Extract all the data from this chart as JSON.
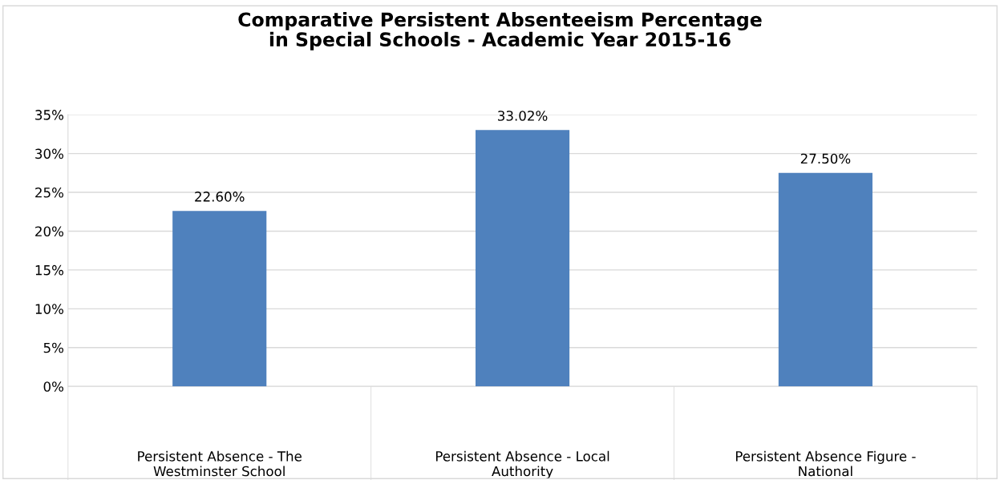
{
  "chart_data": {
    "type": "bar",
    "title": "Comparative Persistent Absenteeism Percentage\nin Special Schools - Academic Year 2015-16",
    "categories": [
      "Persistent Absence - The\nWestminster School",
      "Persistent Absence - Local\nAuthority",
      "Persistent Absence Figure -\nNational"
    ],
    "values": [
      22.6,
      33.02,
      27.5
    ],
    "value_labels": [
      "22.60%",
      "33.02%",
      "27.50%"
    ],
    "color": "#4f81bd",
    "ylim": [
      0,
      35
    ],
    "yticks": [
      {
        "value": 0,
        "label": "0%"
      },
      {
        "value": 5,
        "label": "5%"
      },
      {
        "value": 10,
        "label": "10%"
      },
      {
        "value": 15,
        "label": "15%"
      },
      {
        "value": 20,
        "label": "20%"
      },
      {
        "value": 25,
        "label": "25%"
      },
      {
        "value": 30,
        "label": "30%"
      },
      {
        "value": 35,
        "label": "35%"
      }
    ],
    "grid": "y"
  }
}
